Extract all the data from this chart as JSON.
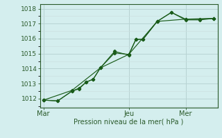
{
  "xlabel": "Pression niveau de la mer( hPa )",
  "bg_color": "#d4eeee",
  "grid_color_major": "#b8d4d4",
  "grid_color_minor": "#cce0e0",
  "line_color": "#1a5c1a",
  "ylim": [
    1011.4,
    1018.3
  ],
  "yticks": [
    1012,
    1013,
    1014,
    1015,
    1016,
    1017,
    1018
  ],
  "xtick_labels": [
    "Mar",
    "Jeu",
    "Mer"
  ],
  "xtick_positions": [
    0,
    12,
    20
  ],
  "xlim": [
    -0.5,
    24.5
  ],
  "series1_x": [
    0,
    2,
    4,
    5,
    6,
    7,
    8,
    10,
    12,
    13,
    14,
    16,
    18,
    20,
    22,
    24
  ],
  "series1_y": [
    1011.9,
    1011.85,
    1012.5,
    1012.7,
    1013.1,
    1013.3,
    1014.05,
    1015.15,
    1014.9,
    1015.95,
    1015.95,
    1017.15,
    1017.75,
    1017.25,
    1017.25,
    1017.35
  ],
  "series2_x": [
    0,
    2,
    4,
    5,
    6,
    7,
    8,
    10,
    12,
    13,
    14,
    16,
    18,
    20,
    22,
    24
  ],
  "series2_y": [
    1011.9,
    1011.85,
    1012.5,
    1012.65,
    1013.1,
    1013.3,
    1014.05,
    1015.05,
    1014.95,
    1015.95,
    1015.95,
    1017.15,
    1017.75,
    1017.3,
    1017.3,
    1017.35
  ],
  "series3_x": [
    0,
    4,
    8,
    12,
    16,
    20,
    24
  ],
  "series3_y": [
    1011.9,
    1012.55,
    1014.05,
    1014.95,
    1017.15,
    1017.3,
    1017.35
  ],
  "tick_color": "#2a5a2a",
  "xlabel_fontsize": 7,
  "ytick_fontsize": 6.5,
  "xtick_fontsize": 7
}
